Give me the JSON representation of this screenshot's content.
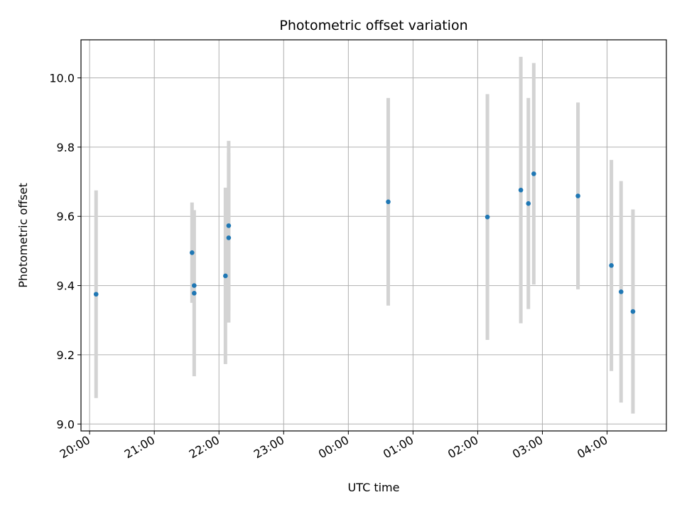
{
  "chart_data": {
    "type": "scatter",
    "title": "Photometric offset variation",
    "xlabel": "UTC time",
    "ylabel": "Photometric offset",
    "grid": true,
    "xlim": [
      "19:52",
      "04:55"
    ],
    "ylim": [
      8.98,
      10.11
    ],
    "x_ticks": [
      "20:00",
      "21:00",
      "22:00",
      "23:00",
      "00:00",
      "01:00",
      "02:00",
      "03:00",
      "04:00"
    ],
    "y_ticks": [
      "9.0",
      "9.2",
      "9.4",
      "9.6",
      "9.8",
      "10.0"
    ],
    "marker_color": "#1f77b4",
    "errorbar_color": "#d3d3d3",
    "series": [
      {
        "points": [
          {
            "x": "20:06",
            "y": 9.375,
            "yerr": 0.3
          },
          {
            "x": "21:35",
            "y": 9.495,
            "yerr": 0.145
          },
          {
            "x": "21:37",
            "y": 9.378,
            "yerr": 0.24
          },
          {
            "x": "21:37",
            "y": 9.4,
            "yerr": 0.0
          },
          {
            "x": "22:06",
            "y": 9.428,
            "yerr": 0.255
          },
          {
            "x": "22:09",
            "y": 9.538,
            "yerr": 0.245
          },
          {
            "x": "22:09",
            "y": 9.573,
            "yerr": 0.245
          },
          {
            "x": "00:37",
            "y": 9.642,
            "yerr": 0.3
          },
          {
            "x": "02:09",
            "y": 9.598,
            "yerr": 0.355
          },
          {
            "x": "02:40",
            "y": 9.676,
            "yerr": 0.385
          },
          {
            "x": "02:47",
            "y": 9.637,
            "yerr": 0.305
          },
          {
            "x": "02:52",
            "y": 9.723,
            "yerr": 0.32
          },
          {
            "x": "03:33",
            "y": 9.659,
            "yerr": 0.27
          },
          {
            "x": "04:04",
            "y": 9.458,
            "yerr": 0.305
          },
          {
            "x": "04:13",
            "y": 9.382,
            "yerr": 0.32
          },
          {
            "x": "04:24",
            "y": 9.325,
            "yerr": 0.295
          }
        ]
      }
    ]
  }
}
